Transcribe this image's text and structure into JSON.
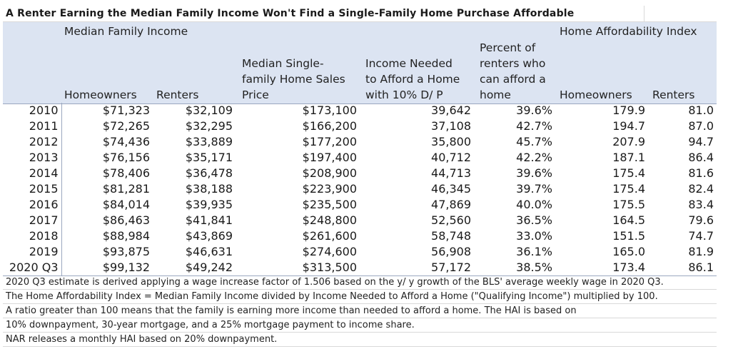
{
  "title": "A Renter Earning the Median Family Income Won't Find a Single-Family Home Purchase Affordable",
  "header": {
    "group_left": "Median Family Income",
    "group_right": "Home Affordability Index",
    "homeowners": "Homeowners",
    "renters": "Renters",
    "price_line1": "Median Single-",
    "price_line2": "family Home Sales",
    "price_line3": "Price",
    "income_line1": "Income Needed",
    "income_line2": "to Afford a Home",
    "income_line3": "with 10% D/ P",
    "percent_line1": "Percent of",
    "percent_line2": "renters who",
    "percent_line3": "can afford a",
    "percent_line4": "home",
    "hai_homeowners": "Homeowners",
    "hai_renters": "Renters"
  },
  "rows": [
    {
      "year": "2010",
      "mfi_owner": "$71,323",
      "mfi_renter": "$32,109",
      "price": "$173,100",
      "income_needed": "39,642",
      "pct_renters": "39.6%",
      "hai_owner": "179.9",
      "hai_renter": "81.0"
    },
    {
      "year": "2011",
      "mfi_owner": "$72,265",
      "mfi_renter": "$32,295",
      "price": "$166,200",
      "income_needed": "37,108",
      "pct_renters": "42.7%",
      "hai_owner": "194.7",
      "hai_renter": "87.0"
    },
    {
      "year": "2012",
      "mfi_owner": "$74,436",
      "mfi_renter": "$33,889",
      "price": "$177,200",
      "income_needed": "35,800",
      "pct_renters": "45.7%",
      "hai_owner": "207.9",
      "hai_renter": "94.7"
    },
    {
      "year": "2013",
      "mfi_owner": "$76,156",
      "mfi_renter": "$35,171",
      "price": "$197,400",
      "income_needed": "40,712",
      "pct_renters": "42.2%",
      "hai_owner": "187.1",
      "hai_renter": "86.4"
    },
    {
      "year": "2014",
      "mfi_owner": "$78,406",
      "mfi_renter": "$36,478",
      "price": "$208,900",
      "income_needed": "44,713",
      "pct_renters": "39.6%",
      "hai_owner": "175.4",
      "hai_renter": "81.6"
    },
    {
      "year": "2015",
      "mfi_owner": "$81,281",
      "mfi_renter": "$38,188",
      "price": "$223,900",
      "income_needed": "46,345",
      "pct_renters": "39.7%",
      "hai_owner": "175.4",
      "hai_renter": "82.4"
    },
    {
      "year": "2016",
      "mfi_owner": "$84,014",
      "mfi_renter": "$39,935",
      "price": "$235,500",
      "income_needed": "47,869",
      "pct_renters": "40.0%",
      "hai_owner": "175.5",
      "hai_renter": "83.4"
    },
    {
      "year": "2017",
      "mfi_owner": "$86,463",
      "mfi_renter": "$41,841",
      "price": "$248,800",
      "income_needed": "52,560",
      "pct_renters": "36.5%",
      "hai_owner": "164.5",
      "hai_renter": "79.6"
    },
    {
      "year": "2018",
      "mfi_owner": "$88,984",
      "mfi_renter": "$43,869",
      "price": "$261,600",
      "income_needed": "58,748",
      "pct_renters": "33.0%",
      "hai_owner": "151.5",
      "hai_renter": "74.7"
    },
    {
      "year": "2019",
      "mfi_owner": "$93,875",
      "mfi_renter": "$46,631",
      "price": "$274,600",
      "income_needed": "56,908",
      "pct_renters": "36.1%",
      "hai_owner": "165.0",
      "hai_renter": "81.9"
    },
    {
      "year": "2020 Q3",
      "mfi_owner": "$99,132",
      "mfi_renter": "$49,242",
      "price": "$313,500",
      "income_needed": "57,172",
      "pct_renters": "38.5%",
      "hai_owner": "173.4",
      "hai_renter": "86.1"
    }
  ],
  "notes": [
    "2020 Q3 estimate is derived applying a wage increase factor of 1.506 based on the y/ y growth of the BLS' average weekly wage in 2020 Q3.",
    "The Home Affordability Index = Median Family Income divided by Income Needed to Afford a Home (\"Qualifying Income\") multiplied by 100.",
    "A ratio greater than 100 means that the family is earning more income than needed to afford a home. The HAI is based on",
    "10% downpayment, 30-year mortgage, and a 25% mortgage payment to income share.",
    "NAR releases a monthly HAI based on 20% downpayment."
  ]
}
